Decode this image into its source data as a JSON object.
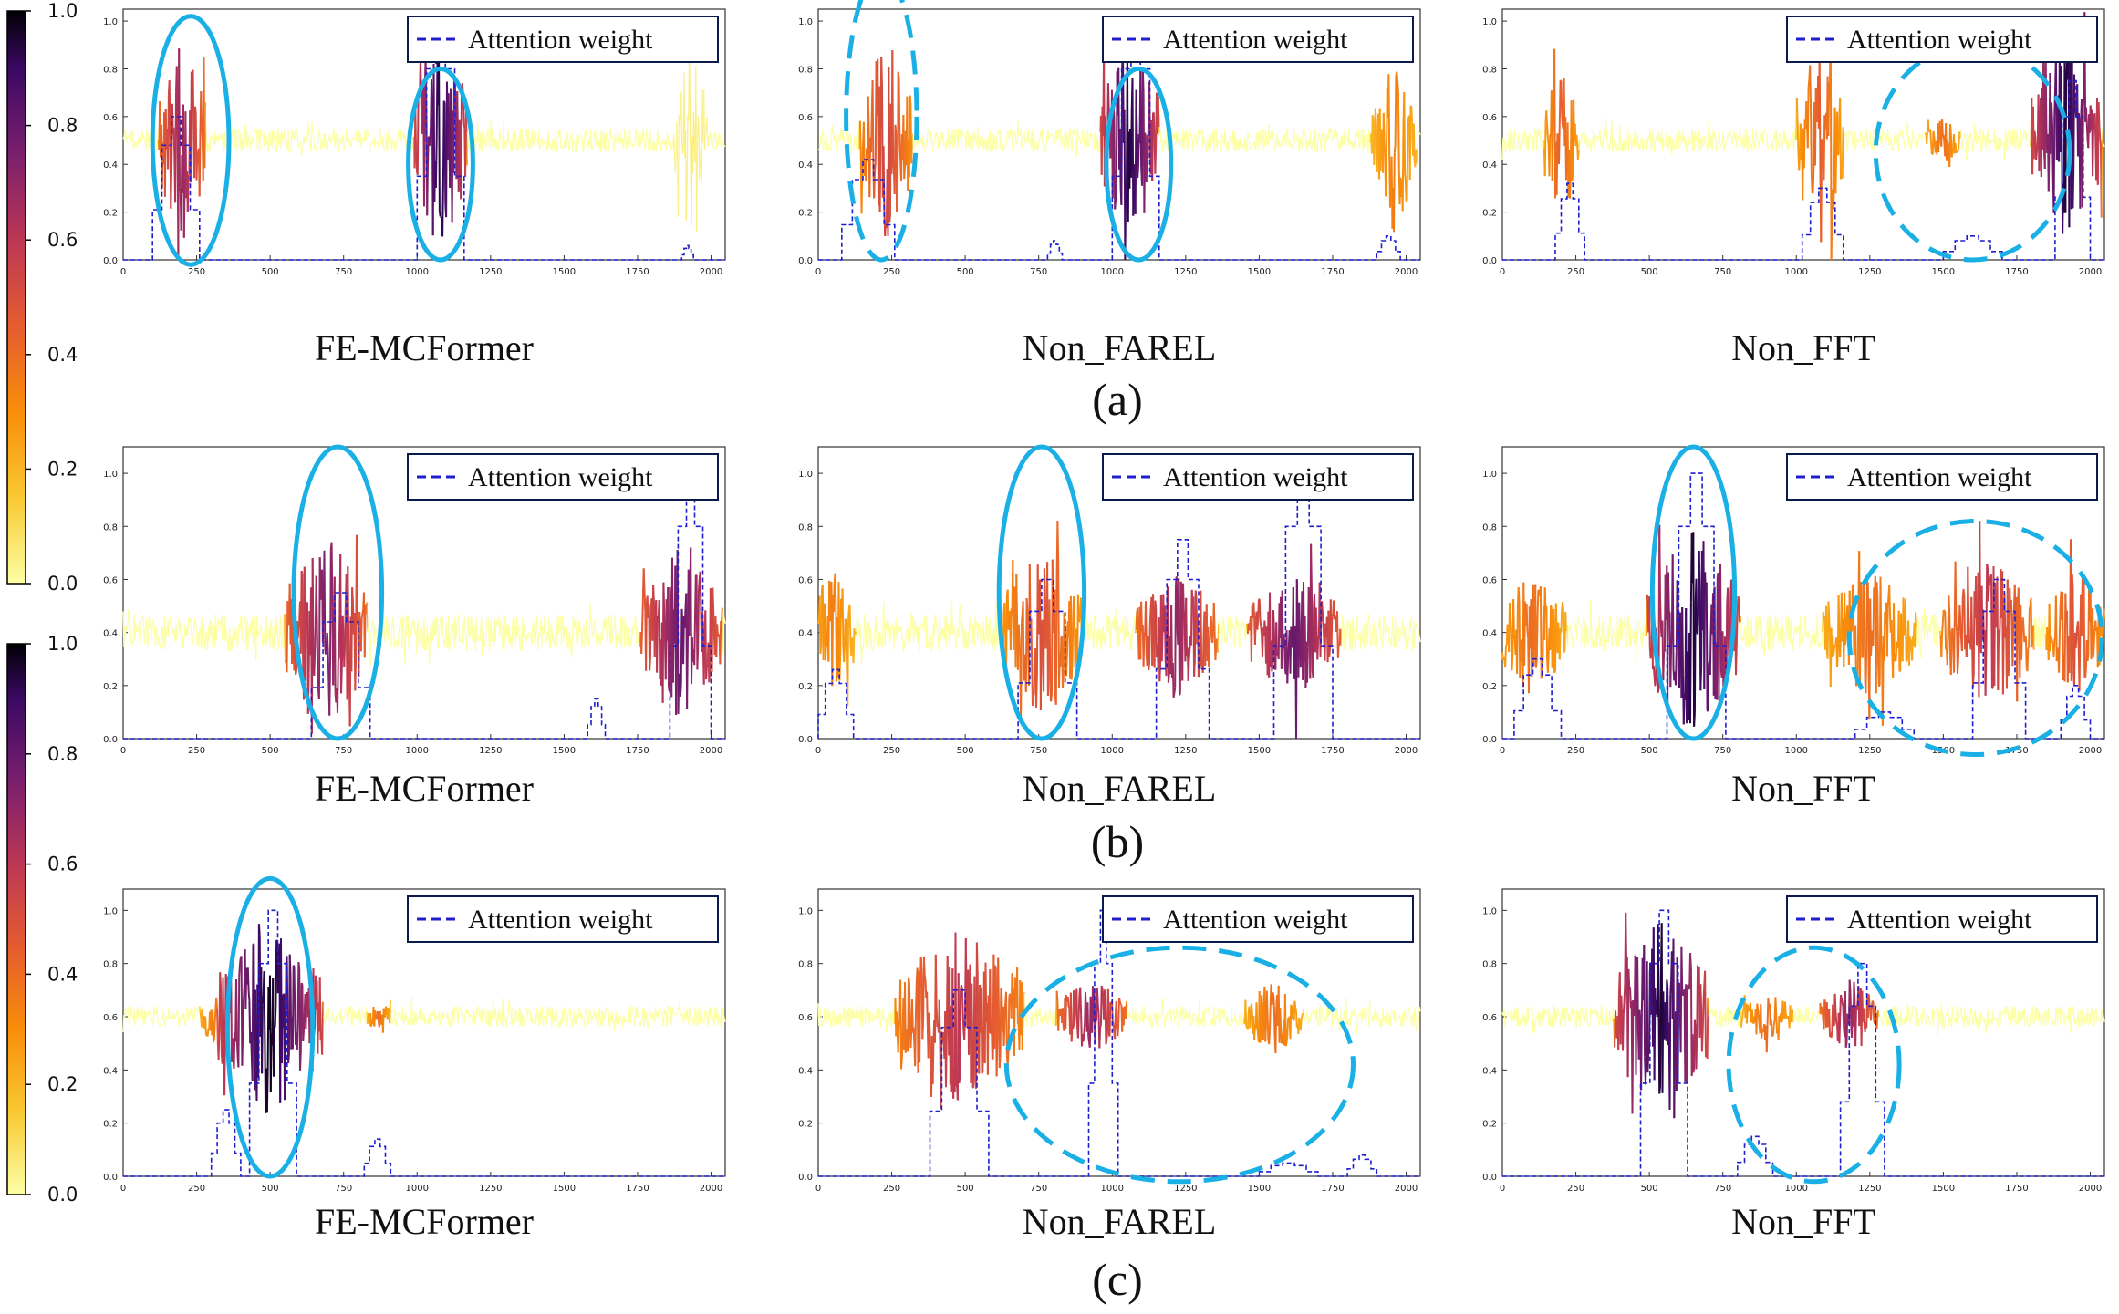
{
  "colorbars": [
    {
      "colormap": "inferno_r",
      "ticks": [
        "1.0",
        "0.8",
        "0.6",
        "0.4",
        "0.2",
        "0.0"
      ]
    },
    {
      "colormap": "inferno_r",
      "ticks": [
        "1.0",
        "0.8",
        "0.6",
        "0.4",
        "0.2",
        "0.0"
      ]
    }
  ],
  "group_labels": [
    "(a)",
    "(b)",
    "(c)"
  ],
  "colors": {
    "signal_low": "#fcffa4",
    "signal_high": "#000004",
    "attention": "#1f1fd0",
    "ellipse": "#1ab0e6",
    "legend_border": "#0a1a4a"
  },
  "chart_data": [
    {
      "type": "line",
      "group": "(a)",
      "model": "FE-MCFormer",
      "legend": "Attention weight",
      "xlim": [
        0,
        2048
      ],
      "ylim": [
        0,
        1.05
      ],
      "xticks": [
        "0",
        "250",
        "500",
        "750",
        "1000",
        "1250",
        "1500",
        "1750",
        "2000"
      ],
      "yticks": [
        "0.0",
        "0.2",
        "0.4",
        "0.6",
        "0.8",
        "1.0"
      ],
      "signal_baseline": 0.5,
      "signal_noise": 0.05,
      "events": [
        {
          "x": 200,
          "w": 80,
          "amp": 0.45,
          "level": 0.7
        },
        {
          "x": 1080,
          "w": 90,
          "amp": 0.5,
          "level": 0.95
        },
        {
          "x": 1930,
          "w": 60,
          "amp": 0.4,
          "level": 0.05
        }
      ],
      "attention": [
        {
          "x": 100,
          "w": 160,
          "h": 0.6
        },
        {
          "x": 1000,
          "w": 160,
          "h": 1.0
        },
        {
          "x": 1900,
          "w": 40,
          "h": 0.06
        }
      ],
      "ellipses": [
        {
          "x": 230,
          "y": 0.5,
          "rx": 130,
          "ry": 0.52,
          "style": "solid"
        },
        {
          "x": 1080,
          "y": 0.4,
          "rx": 110,
          "ry": 0.4,
          "style": "solid"
        }
      ]
    },
    {
      "type": "line",
      "group": "(a)",
      "model": "Non_FAREL",
      "legend": "Attention weight",
      "xlim": [
        0,
        2048
      ],
      "ylim": [
        0,
        1.05
      ],
      "xticks": [
        "0",
        "250",
        "500",
        "750",
        "1000",
        "1250",
        "1500",
        "1750",
        "2000"
      ],
      "yticks": [
        "0.0",
        "0.2",
        "0.4",
        "0.6",
        "0.8",
        "1.0"
      ],
      "signal_baseline": 0.5,
      "signal_noise": 0.05,
      "events": [
        {
          "x": 230,
          "w": 90,
          "amp": 0.45,
          "level": 0.55
        },
        {
          "x": 1060,
          "w": 100,
          "amp": 0.45,
          "level": 0.95
        },
        {
          "x": 1960,
          "w": 80,
          "amp": 0.4,
          "level": 0.35
        }
      ],
      "attention": [
        {
          "x": 80,
          "w": 180,
          "h": 0.42
        },
        {
          "x": 780,
          "w": 50,
          "h": 0.08
        },
        {
          "x": 1000,
          "w": 160,
          "h": 1.0
        },
        {
          "x": 1900,
          "w": 80,
          "h": 0.1
        }
      ],
      "ellipses": [
        {
          "x": 215,
          "y": 0.6,
          "rx": 120,
          "ry": 0.6,
          "style": "dashed"
        },
        {
          "x": 1090,
          "y": 0.4,
          "rx": 110,
          "ry": 0.4,
          "style": "solid"
        }
      ]
    },
    {
      "type": "line",
      "group": "(a)",
      "model": "Non_FFT",
      "legend": "Attention weight",
      "xlim": [
        0,
        2048
      ],
      "ylim": [
        0,
        1.05
      ],
      "xticks": [
        "0",
        "250",
        "500",
        "750",
        "1000",
        "1250",
        "1500",
        "1750",
        "2000"
      ],
      "yticks": [
        "0.0",
        "0.2",
        "0.4",
        "0.6",
        "0.8",
        "1.0"
      ],
      "signal_baseline": 0.5,
      "signal_noise": 0.05,
      "events": [
        {
          "x": 200,
          "w": 60,
          "amp": 0.35,
          "level": 0.45
        },
        {
          "x": 1080,
          "w": 80,
          "amp": 0.45,
          "level": 0.45
        },
        {
          "x": 1500,
          "w": 60,
          "amp": 0.1,
          "level": 0.4
        },
        {
          "x": 1920,
          "w": 120,
          "amp": 0.45,
          "level": 0.95
        }
      ],
      "attention": [
        {
          "x": 180,
          "w": 100,
          "h": 0.32
        },
        {
          "x": 1020,
          "w": 140,
          "h": 0.3
        },
        {
          "x": 1500,
          "w": 200,
          "h": 0.1
        },
        {
          "x": 1880,
          "w": 120,
          "h": 0.75
        }
      ],
      "ellipses": [
        {
          "x": 1600,
          "y": 0.45,
          "rx": 330,
          "ry": 0.45,
          "style": "dashed"
        }
      ]
    },
    {
      "type": "line",
      "group": "(b)",
      "model": "FE-MCFormer",
      "legend": "Attention weight",
      "xlim": [
        0,
        2048
      ],
      "ylim": [
        0,
        1.1
      ],
      "xticks": [
        "0",
        "250",
        "500",
        "750",
        "1000",
        "1250",
        "1500",
        "1750",
        "2000"
      ],
      "yticks": [
        "0.0",
        "0.2",
        "0.4",
        "0.6",
        "0.8",
        "1.0"
      ],
      "signal_baseline": 0.4,
      "signal_noise": 0.07,
      "events": [
        {
          "x": 690,
          "w": 140,
          "amp": 0.4,
          "level": 0.75
        },
        {
          "x": 1900,
          "w": 140,
          "amp": 0.35,
          "level": 0.8
        }
      ],
      "attention": [
        {
          "x": 640,
          "w": 200,
          "h": 0.55
        },
        {
          "x": 1580,
          "w": 60,
          "h": 0.15
        },
        {
          "x": 1860,
          "w": 140,
          "h": 1.0
        }
      ],
      "ellipses": [
        {
          "x": 730,
          "y": 0.55,
          "rx": 150,
          "ry": 0.55,
          "style": "solid"
        }
      ]
    },
    {
      "type": "line",
      "group": "(b)",
      "model": "Non_FAREL",
      "legend": "Attention weight",
      "xlim": [
        0,
        2048
      ],
      "ylim": [
        0,
        1.1
      ],
      "xticks": [
        "0",
        "250",
        "500",
        "750",
        "1000",
        "1250",
        "1500",
        "1750",
        "2000"
      ],
      "yticks": [
        "0.0",
        "0.2",
        "0.4",
        "0.6",
        "0.8",
        "1.0"
      ],
      "signal_baseline": 0.4,
      "signal_noise": 0.07,
      "events": [
        {
          "x": 50,
          "w": 80,
          "amp": 0.25,
          "level": 0.35
        },
        {
          "x": 760,
          "w": 140,
          "amp": 0.35,
          "level": 0.5
        },
        {
          "x": 1220,
          "w": 140,
          "amp": 0.25,
          "level": 0.7
        },
        {
          "x": 1620,
          "w": 160,
          "amp": 0.25,
          "level": 0.8
        }
      ],
      "attention": [
        {
          "x": 0,
          "w": 120,
          "h": 0.26
        },
        {
          "x": 680,
          "w": 200,
          "h": 0.6
        },
        {
          "x": 1150,
          "w": 180,
          "h": 0.75
        },
        {
          "x": 1550,
          "w": 200,
          "h": 1.0
        }
      ],
      "ellipses": [
        {
          "x": 760,
          "y": 0.55,
          "rx": 145,
          "ry": 0.55,
          "style": "solid"
        }
      ]
    },
    {
      "type": "line",
      "group": "(b)",
      "model": "Non_FFT",
      "legend": "Attention weight",
      "xlim": [
        0,
        2048
      ],
      "ylim": [
        0,
        1.1
      ],
      "xticks": [
        "0",
        "250",
        "500",
        "750",
        "1000",
        "1250",
        "1500",
        "1750",
        "2000"
      ],
      "yticks": [
        "0.0",
        "0.2",
        "0.4",
        "0.6",
        "0.8",
        "1.0"
      ],
      "signal_baseline": 0.4,
      "signal_noise": 0.07,
      "events": [
        {
          "x": 100,
          "w": 120,
          "amp": 0.25,
          "level": 0.4
        },
        {
          "x": 650,
          "w": 160,
          "amp": 0.4,
          "level": 0.95
        },
        {
          "x": 1250,
          "w": 160,
          "amp": 0.25,
          "level": 0.4
        },
        {
          "x": 1650,
          "w": 160,
          "amp": 0.3,
          "level": 0.6
        },
        {
          "x": 1950,
          "w": 100,
          "amp": 0.25,
          "level": 0.5
        }
      ],
      "attention": [
        {
          "x": 40,
          "w": 160,
          "h": 0.3
        },
        {
          "x": 560,
          "w": 200,
          "h": 1.0
        },
        {
          "x": 1200,
          "w": 200,
          "h": 0.1
        },
        {
          "x": 1600,
          "w": 180,
          "h": 0.6
        },
        {
          "x": 1900,
          "w": 100,
          "h": 0.2
        }
      ],
      "ellipses": [
        {
          "x": 650,
          "y": 0.55,
          "rx": 140,
          "ry": 0.55,
          "style": "solid"
        },
        {
          "x": 1610,
          "y": 0.38,
          "rx": 430,
          "ry": 0.44,
          "style": "dashed"
        }
      ]
    },
    {
      "type": "line",
      "group": "(c)",
      "model": "FE-MCFormer",
      "legend": "Attention weight",
      "xlim": [
        0,
        2048
      ],
      "ylim": [
        0,
        1.08
      ],
      "xticks": [
        "0",
        "250",
        "500",
        "750",
        "1000",
        "1250",
        "1500",
        "1750",
        "2000"
      ],
      "yticks": [
        "0.0",
        "0.2",
        "0.4",
        "0.6",
        "0.8",
        "1.0"
      ],
      "signal_baseline": 0.6,
      "signal_noise": 0.04,
      "events": [
        {
          "x": 330,
          "w": 70,
          "amp": 0.12,
          "level": 0.4
        },
        {
          "x": 500,
          "w": 180,
          "amp": 0.4,
          "level": 0.98
        },
        {
          "x": 870,
          "w": 40,
          "amp": 0.05,
          "level": 0.4
        }
      ],
      "attention": [
        {
          "x": 300,
          "w": 100,
          "h": 0.25
        },
        {
          "x": 430,
          "w": 160,
          "h": 1.0
        },
        {
          "x": 820,
          "w": 90,
          "h": 0.14
        }
      ],
      "ellipses": [
        {
          "x": 500,
          "y": 0.56,
          "rx": 145,
          "ry": 0.56,
          "style": "solid"
        }
      ]
    },
    {
      "type": "line",
      "group": "(c)",
      "model": "Non_FAREL",
      "legend": "Attention weight",
      "xlim": [
        0,
        2048
      ],
      "ylim": [
        0,
        1.08
      ],
      "xticks": [
        "0",
        "250",
        "500",
        "750",
        "1000",
        "1250",
        "1500",
        "1750",
        "2000"
      ],
      "yticks": [
        "0.0",
        "0.2",
        "0.4",
        "0.6",
        "0.8",
        "1.0"
      ],
      "signal_baseline": 0.6,
      "signal_noise": 0.04,
      "events": [
        {
          "x": 480,
          "w": 220,
          "amp": 0.35,
          "level": 0.6
        },
        {
          "x": 930,
          "w": 120,
          "amp": 0.15,
          "level": 0.7
        },
        {
          "x": 1550,
          "w": 100,
          "amp": 0.15,
          "level": 0.4
        }
      ],
      "attention": [
        {
          "x": 380,
          "w": 200,
          "h": 0.7
        },
        {
          "x": 920,
          "w": 100,
          "h": 1.0
        },
        {
          "x": 1500,
          "w": 200,
          "h": 0.05
        },
        {
          "x": 1800,
          "w": 100,
          "h": 0.08
        }
      ],
      "ellipses": [
        {
          "x": 1230,
          "y": 0.42,
          "rx": 590,
          "ry": 0.44,
          "style": "dashed"
        }
      ]
    },
    {
      "type": "line",
      "group": "(c)",
      "model": "Non_FFT",
      "legend": "Attention weight",
      "xlim": [
        0,
        2048
      ],
      "ylim": [
        0,
        1.08
      ],
      "xticks": [
        "0",
        "250",
        "500",
        "750",
        "1000",
        "1250",
        "1500",
        "1750",
        "2000"
      ],
      "yticks": [
        "0.0",
        "0.2",
        "0.4",
        "0.6",
        "0.8",
        "1.0"
      ],
      "signal_baseline": 0.6,
      "signal_noise": 0.04,
      "events": [
        {
          "x": 540,
          "w": 160,
          "amp": 0.4,
          "level": 0.95
        },
        {
          "x": 900,
          "w": 90,
          "amp": 0.1,
          "level": 0.4
        },
        {
          "x": 1180,
          "w": 100,
          "amp": 0.15,
          "level": 0.7
        }
      ],
      "attention": [
        {
          "x": 470,
          "w": 160,
          "h": 1.0
        },
        {
          "x": 800,
          "w": 120,
          "h": 0.15
        },
        {
          "x": 1150,
          "w": 150,
          "h": 0.8
        }
      ],
      "ellipses": [
        {
          "x": 1060,
          "y": 0.42,
          "rx": 290,
          "ry": 0.44,
          "style": "dashed"
        }
      ]
    }
  ]
}
